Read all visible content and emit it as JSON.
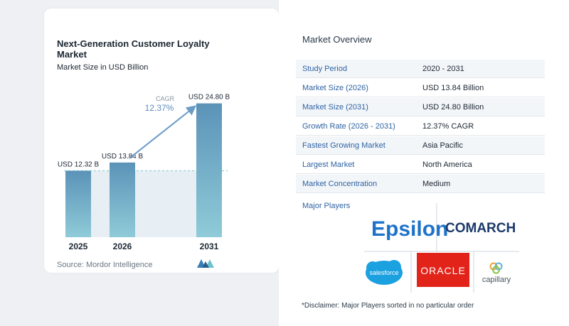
{
  "chart_data": {
    "type": "bar",
    "title": "Next-Generation Customer Loyalty Market",
    "subtitle": "Market Size in USD Billion",
    "categories": [
      "2025",
      "2026",
      "2031"
    ],
    "values": [
      12.32,
      13.84,
      24.8
    ],
    "value_labels": [
      "USD 12.32 B",
      "USD 13.84 B",
      "USD 24.80 B"
    ],
    "cagr_label": "CAGR",
    "cagr_value": "12.37%",
    "ylim": [
      0,
      25
    ],
    "grid": false,
    "legend": "none",
    "colors": {
      "bar_top": "#5b93b8",
      "bar_bottom": "#8fcbd8",
      "arrow": "#6b9cc8",
      "shade": "#dde7f0",
      "dashed": "#7dc8cf"
    }
  },
  "source": "Source:  Mordor Intelligence",
  "overview": {
    "title": "Market Overview",
    "rows": [
      {
        "label": "Study Period",
        "value": "2020 - 2031"
      },
      {
        "label": "Market Size (2026)",
        "value": "USD 13.84 Billion"
      },
      {
        "label": "Market Size (2031)",
        "value": "USD 24.80 Billion"
      },
      {
        "label": "Growth Rate (2026 - 2031)",
        "value": "12.37% CAGR"
      },
      {
        "label": "Fastest Growing Market",
        "value": "Asia Pacific"
      },
      {
        "label": "Largest Market",
        "value": "North America"
      },
      {
        "label": "Market Concentration",
        "value": "Medium"
      }
    ]
  },
  "players": {
    "label": "Major Players",
    "names": [
      "Epsilon",
      "COMARCH",
      "salesforce",
      "ORACLE",
      "capillary"
    ]
  },
  "disclaimer": "*Disclaimer: Major Players sorted in no particular order"
}
